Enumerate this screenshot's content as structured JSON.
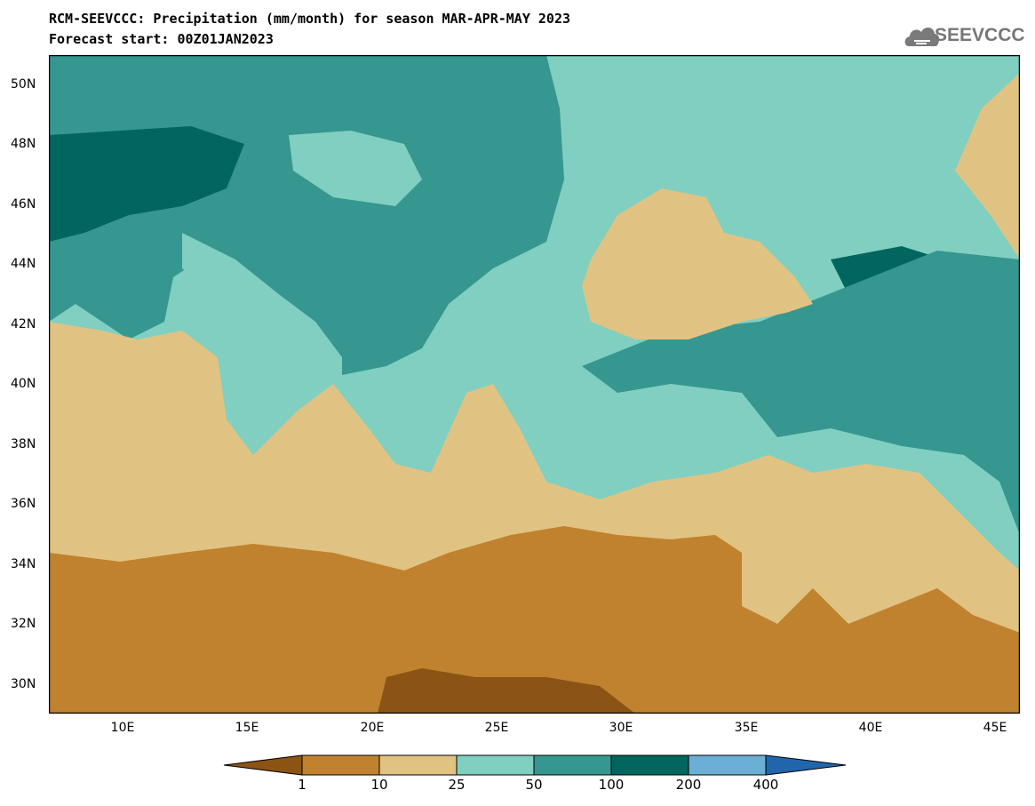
{
  "header": {
    "title_line1": "RCM-SEEVCCC: Precipitation (mm/month) for season MAR-APR-MAY 2023",
    "title_line2": "Forecast start: 00Z01JAN2023",
    "logo_text": "SEEVCCC",
    "logo_icon": "cloud-icon"
  },
  "map": {
    "lat_ticks": [
      "50N",
      "48N",
      "46N",
      "44N",
      "42N",
      "40N",
      "38N",
      "36N",
      "34N",
      "32N",
      "30N"
    ],
    "lon_ticks": [
      "10E",
      "15E",
      "20E",
      "25E",
      "30E",
      "35E",
      "40E",
      "45E"
    ],
    "lat_range": [
      29,
      51
    ],
    "lon_range": [
      7,
      46
    ]
  },
  "colorbar": {
    "colors": [
      "#8c5414",
      "#c0822f",
      "#e0c382",
      "#80cfc1",
      "#35978f",
      "#01665e",
      "#6baed6",
      "#2166ac"
    ],
    "labels": [
      "1",
      "10",
      "25",
      "50",
      "100",
      "200",
      "400"
    ]
  }
}
